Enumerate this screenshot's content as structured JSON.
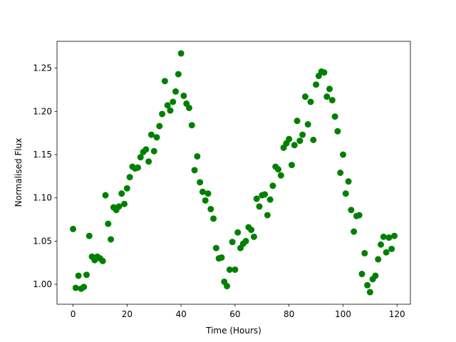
{
  "chart_data": {
    "type": "scatter",
    "xlabel": "Time (Hours)",
    "ylabel": "Normalised Flux",
    "color": "#008000",
    "x": [
      0,
      1,
      2,
      3,
      4,
      5,
      6,
      7,
      8,
      9,
      10,
      11,
      12,
      13,
      14,
      15,
      16,
      17,
      18,
      19,
      20,
      21,
      22,
      23,
      24,
      25,
      26,
      27,
      28,
      29,
      30,
      31,
      32,
      33,
      34,
      35,
      36,
      37,
      38,
      39,
      40,
      41,
      42,
      43,
      44,
      45,
      46,
      47,
      48,
      49,
      50,
      51,
      52,
      53,
      54,
      55,
      56,
      57,
      58,
      59,
      60,
      61,
      62,
      63,
      64,
      65,
      66,
      67,
      68,
      69,
      70,
      71,
      72,
      73,
      74,
      75,
      76,
      77,
      78,
      79,
      80,
      81,
      82,
      83,
      84,
      85,
      86,
      87,
      88,
      89,
      90,
      91,
      92,
      93,
      94,
      95,
      96,
      97,
      98,
      99,
      100,
      101,
      102,
      103,
      104,
      105,
      106,
      107,
      108,
      109,
      110,
      111,
      112,
      113,
      114,
      115,
      116,
      117,
      118,
      119
    ],
    "values": [
      1.064,
      0.996,
      1.01,
      0.995,
      0.997,
      1.011,
      1.056,
      1.032,
      1.028,
      1.032,
      1.03,
      1.027,
      1.103,
      1.07,
      1.052,
      1.089,
      1.086,
      1.09,
      1.105,
      1.093,
      1.111,
      1.124,
      1.136,
      1.134,
      1.135,
      1.147,
      1.153,
      1.156,
      1.142,
      1.173,
      1.154,
      1.17,
      1.183,
      1.197,
      1.235,
      1.207,
      1.201,
      1.211,
      1.223,
      1.243,
      1.267,
      1.218,
      1.209,
      1.204,
      1.184,
      1.132,
      1.148,
      1.118,
      1.107,
      1.097,
      1.105,
      1.087,
      1.076,
      1.042,
      1.03,
      1.031,
      1.003,
      0.998,
      1.017,
      1.049,
      1.017,
      1.06,
      1.042,
      1.047,
      1.05,
      1.066,
      1.063,
      1.055,
      1.099,
      1.09,
      1.103,
      1.104,
      1.08,
      1.098,
      1.114,
      1.136,
      1.133,
      1.126,
      1.158,
      1.163,
      1.168,
      1.138,
      1.161,
      1.189,
      1.166,
      1.173,
      1.217,
      1.185,
      1.211,
      1.167,
      1.231,
      1.241,
      1.246,
      1.245,
      1.217,
      1.226,
      1.213,
      1.194,
      1.177,
      1.129,
      1.15,
      1.105,
      1.119,
      1.086,
      1.061,
      1.079,
      1.08,
      1.012,
      1.036,
      0.999,
      0.991,
      1.006,
      1.01,
      1.029,
      1.046,
      1.055,
      1.037,
      1.054,
      1.041,
      1.056
    ],
    "xlim": [
      -5.95,
      124.95
    ],
    "xticks": [
      0,
      20,
      40,
      60,
      80,
      100,
      120
    ],
    "ylim": [
      0.977,
      1.281
    ],
    "yticks": [
      {
        "value": 1.0,
        "label": "1.00"
      },
      {
        "value": 1.05,
        "label": "1.05"
      },
      {
        "value": 1.1,
        "label": "1.10"
      },
      {
        "value": 1.15,
        "label": "1.15"
      },
      {
        "value": 1.2,
        "label": "1.20"
      },
      {
        "value": 1.25,
        "label": "1.25"
      }
    ],
    "grid": false
  }
}
